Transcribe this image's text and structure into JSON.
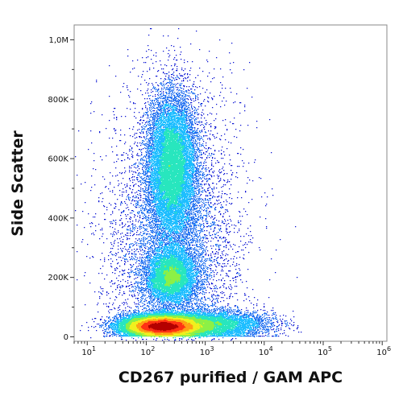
{
  "chart_data": {
    "type": "scatter",
    "subtype": "flow-cytometry-density-dot-plot",
    "title": "",
    "xlabel": "CD267 purified / GAM APC",
    "ylabel": "Side Scatter",
    "x_scale": "log",
    "y_scale": "linear",
    "xlim": [
      6,
      1200000
    ],
    "ylim": [
      -15000,
      1050000
    ],
    "grid": false,
    "legend": "none",
    "x_ticks": [
      {
        "value": 10,
        "base": "10",
        "exp": "1"
      },
      {
        "value": 100,
        "base": "10",
        "exp": "2"
      },
      {
        "value": 1000,
        "base": "10",
        "exp": "3"
      },
      {
        "value": 10000,
        "base": "10",
        "exp": "4"
      },
      {
        "value": 100000,
        "base": "10",
        "exp": "5"
      },
      {
        "value": 1000000,
        "base": "10",
        "exp": "6"
      }
    ],
    "y_ticks": [
      {
        "value": 0,
        "label": "0"
      },
      {
        "value": 200000,
        "label": "200K"
      },
      {
        "value": 400000,
        "label": "400K"
      },
      {
        "value": 600000,
        "label": "600K"
      },
      {
        "value": 800000,
        "label": "800K"
      },
      {
        "value": 1000000,
        "label": "1,0M"
      }
    ],
    "density_colormap": [
      "#0a14d2",
      "#1e6ef0",
      "#1ebeff",
      "#28e6be",
      "#8cf046",
      "#f0f01e",
      "#ffa014",
      "#ff3214",
      "#b40000"
    ],
    "populations": [
      {
        "name": "low-SSC main cluster",
        "x_center": 180,
        "y_center": 35000,
        "x_spread_decades": 0.32,
        "y_spread": 18000,
        "weight": 0.42
      },
      {
        "name": "low-SSC tail",
        "x_center": 900,
        "y_center": 40000,
        "x_spread_decades": 0.5,
        "y_spread": 22000,
        "weight": 0.14
      },
      {
        "name": "mid-SSC cluster",
        "x_center": 260,
        "y_center": 205000,
        "x_spread_decades": 0.2,
        "y_spread": 45000,
        "weight": 0.12
      },
      {
        "name": "high-SSC cluster",
        "x_center": 270,
        "y_center": 570000,
        "x_spread_decades": 0.2,
        "y_spread": 120000,
        "weight": 0.22
      },
      {
        "name": "diffuse background",
        "x_center": 300,
        "y_center": 300000,
        "x_spread_decades": 0.55,
        "y_spread": 260000,
        "weight": 0.1
      }
    ]
  }
}
